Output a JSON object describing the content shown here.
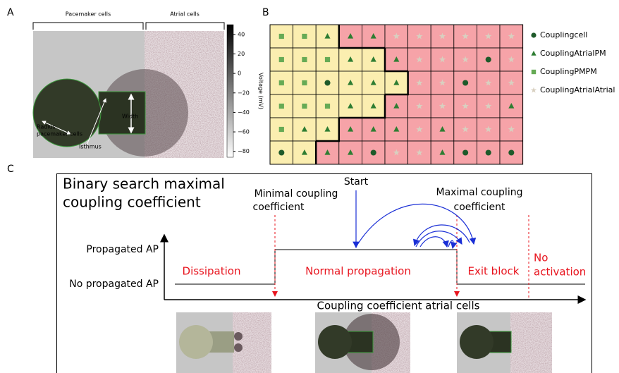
{
  "panel_labels": [
    "A",
    "B",
    "C"
  ],
  "panel_a": {
    "brackets": [
      "Pacemaker cells",
      "Atrial cells"
    ],
    "annotations": {
      "radius": [
        "Radius",
        "pacemaker cells"
      ],
      "isthmus": "Isthmus",
      "width": "Width"
    },
    "colorbar": {
      "label": "Voltage (mV)",
      "lim": [
        -86,
        50
      ],
      "ticks": [
        40,
        20,
        0,
        {
          "value": -20,
          "label": "−20"
        },
        {
          "value": -40,
          "label": "−40"
        },
        {
          "value": -60,
          "label": "−60"
        },
        {
          "value": -80,
          "label": "−80"
        }
      ]
    }
  },
  "panel_b": {
    "legend": [
      {
        "name": "Couplingcell",
        "marker": "circle",
        "color": "#1e5a2a"
      },
      {
        "name": "CouplingAtrialPM",
        "marker": "triangle",
        "color": "#2e7d32"
      },
      {
        "name": "CouplingPMPM",
        "marker": "square",
        "color": "#66aa55"
      },
      {
        "name": "CouplingAtrialAtrial",
        "marker": "star",
        "color": "#d8d0c0"
      }
    ],
    "grid": [
      [
        "CouplingPMPM",
        "CouplingPMPM",
        "CouplingAtrialPM",
        "CouplingAtrialPM",
        "CouplingAtrialPM",
        "CouplingAtrialAtrial",
        "CouplingAtrialAtrial",
        "CouplingAtrialAtrial",
        "CouplingAtrialAtrial",
        "CouplingAtrialAtrial",
        "CouplingAtrialAtrial"
      ],
      [
        "CouplingPMPM",
        "CouplingPMPM",
        "CouplingPMPM",
        "CouplingAtrialPM",
        "CouplingAtrialPM",
        "CouplingAtrialPM",
        "CouplingAtrialAtrial",
        "CouplingAtrialAtrial",
        "CouplingAtrialAtrial",
        "Couplingcell",
        "CouplingAtrialAtrial"
      ],
      [
        "CouplingPMPM",
        "CouplingPMPM",
        "Couplingcell",
        "CouplingAtrialPM",
        "CouplingAtrialPM",
        "CouplingAtrialPM",
        "CouplingAtrialAtrial",
        "CouplingAtrialAtrial",
        "Couplingcell",
        "CouplingAtrialAtrial",
        "CouplingAtrialAtrial"
      ],
      [
        "CouplingPMPM",
        "CouplingPMPM",
        "CouplingPMPM",
        "CouplingAtrialPM",
        "CouplingAtrialPM",
        "CouplingAtrialPM",
        "CouplingAtrialAtrial",
        "CouplingAtrialAtrial",
        "CouplingAtrialAtrial",
        "CouplingAtrialAtrial",
        "CouplingAtrialPM"
      ],
      [
        "CouplingPMPM",
        "CouplingAtrialPM",
        "CouplingAtrialPM",
        "CouplingAtrialPM",
        "CouplingAtrialPM",
        "CouplingAtrialPM",
        "CouplingAtrialAtrial",
        "CouplingAtrialPM",
        "CouplingAtrialAtrial",
        "CouplingAtrialAtrial",
        "CouplingAtrialAtrial"
      ],
      [
        "Couplingcell",
        "CouplingAtrialPM",
        "CouplingAtrialPM",
        "CouplingAtrialPM",
        "Couplingcell",
        "CouplingAtrialAtrial",
        "CouplingAtrialAtrial",
        "CouplingAtrialPM",
        "Couplingcell",
        "Couplingcell",
        "Couplingcell"
      ]
    ]
  },
  "panel_c": {
    "title": [
      "Binary search maximal",
      "coupling coefficient"
    ],
    "start": "Start",
    "minimal": [
      "Minimal coupling",
      "coefficient"
    ],
    "maximal": [
      "Maximal coupling",
      "coefficient"
    ],
    "y_levels": [
      "Propagated AP",
      "No propagated AP"
    ],
    "regions": [
      "Dissipation",
      "Normal propagation",
      "Exit block"
    ],
    "no_activation": [
      "No",
      "activation"
    ],
    "x_label": "Coupling coefficient atrial cells"
  }
}
